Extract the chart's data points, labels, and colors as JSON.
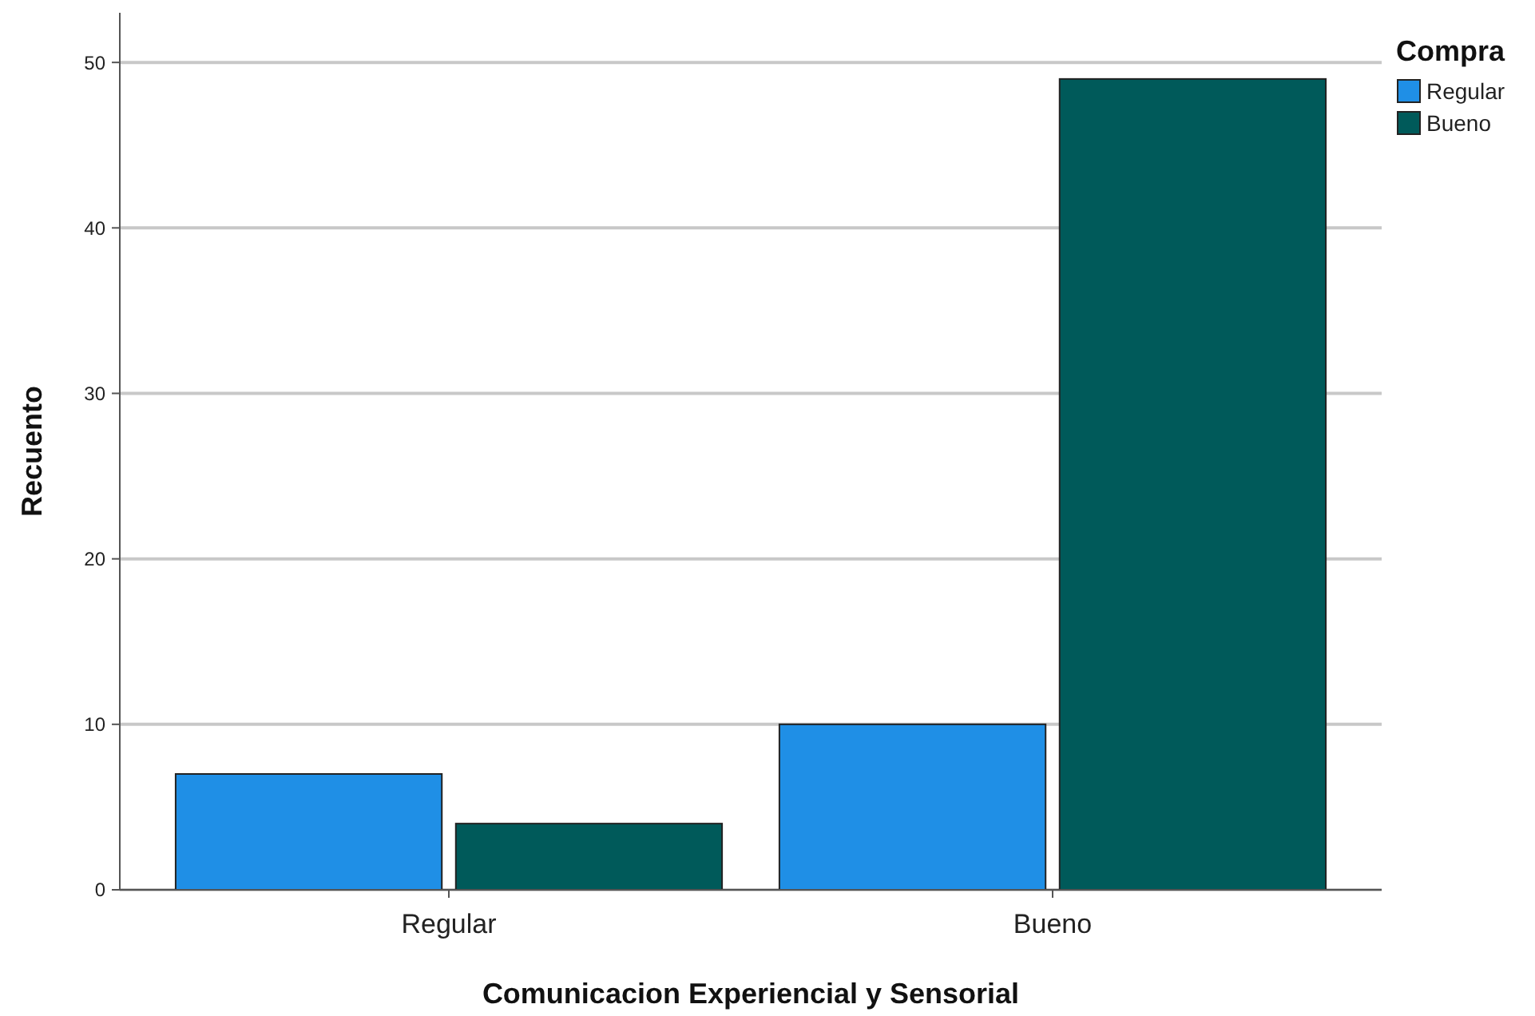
{
  "chart_data": {
    "type": "bar",
    "xlabel": "Comunicacion Experiencial y Sensorial",
    "ylabel": "Recuento",
    "legend_title": "Compra",
    "categories": [
      "Regular",
      "Bueno"
    ],
    "series": [
      {
        "name": "Regular",
        "color": "#1f8fe6",
        "values": [
          7,
          10
        ]
      },
      {
        "name": "Bueno",
        "color": "#005a5a",
        "values": [
          4,
          49
        ]
      }
    ],
    "ylim": [
      0,
      53
    ],
    "yticks": [
      0,
      10,
      20,
      30,
      40,
      50
    ],
    "grid": "y",
    "legend": "top right"
  }
}
